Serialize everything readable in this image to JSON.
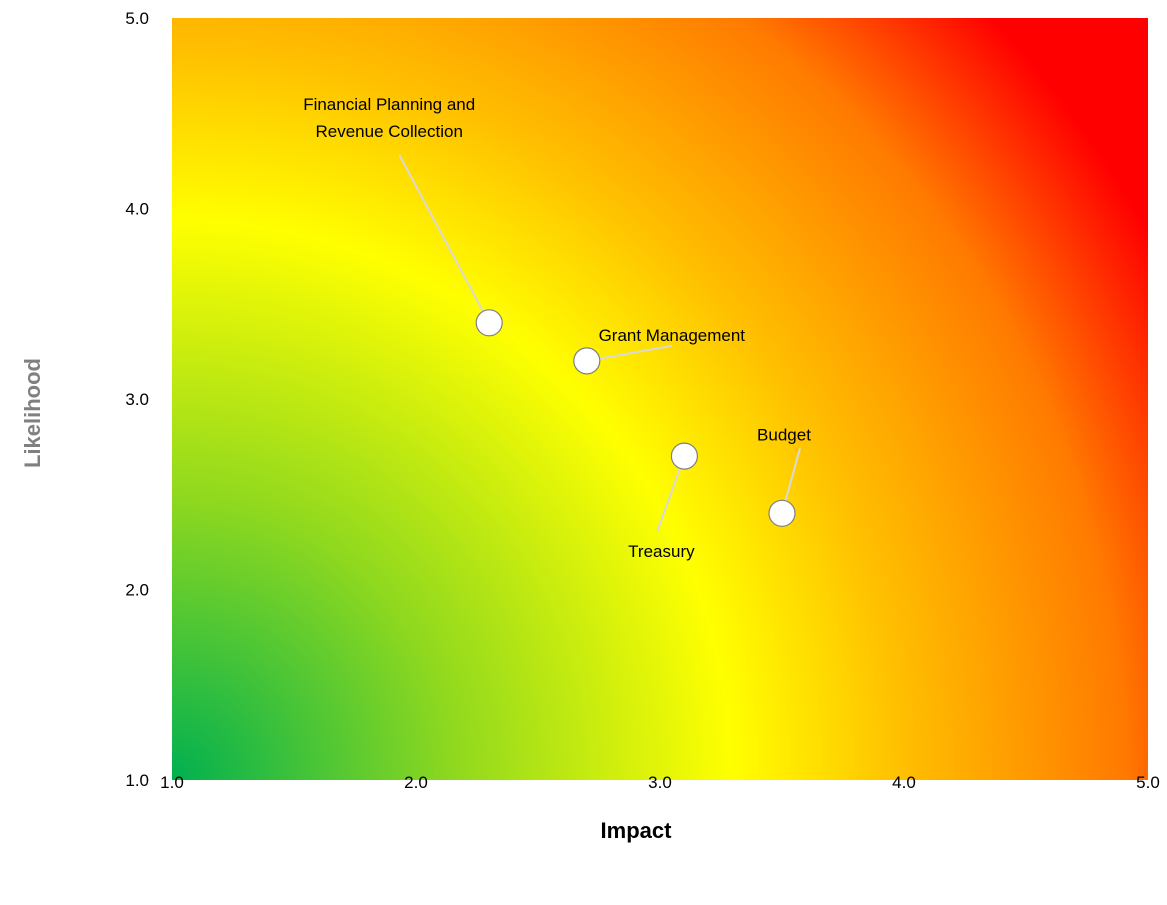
{
  "chart_data": {
    "type": "scatter",
    "xlabel": "Impact",
    "ylabel": "Likelihood",
    "xlim": [
      1.0,
      5.0
    ],
    "ylim": [
      1.0,
      5.0
    ],
    "x_ticks": [
      "1.0",
      "2.0",
      "3.0",
      "4.0",
      "5.0"
    ],
    "y_ticks": [
      "1.0",
      "2.0",
      "3.0",
      "4.0",
      "5.0"
    ],
    "grid": false,
    "background": "green-yellow-red risk gradient",
    "colors": {
      "low": "#00b050",
      "mid": "#ffff00",
      "high": "#ff0000",
      "axis_title": "#808080"
    },
    "points": [
      {
        "label": [
          "Financial Planning and",
          "Revenue Collection"
        ],
        "x": 2.3,
        "y": 3.4
      },
      {
        "label": [
          "Grant Management"
        ],
        "x": 2.7,
        "y": 3.2
      },
      {
        "label": [
          "Treasury"
        ],
        "x": 3.1,
        "y": 2.7
      },
      {
        "label": [
          "Budget"
        ],
        "x": 3.5,
        "y": 2.4
      }
    ]
  }
}
